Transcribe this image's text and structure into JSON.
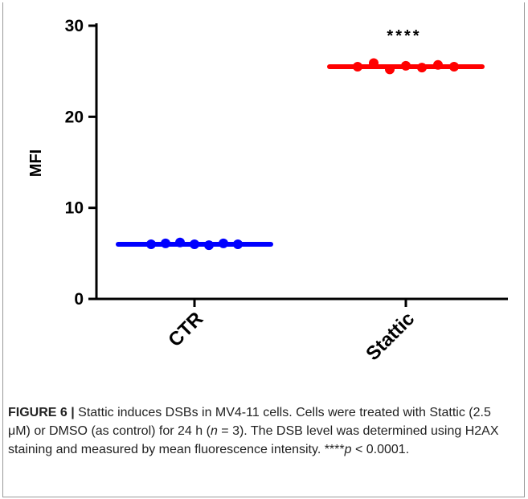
{
  "chart_data": {
    "type": "scatter",
    "categories": [
      "CTR",
      "Stattic"
    ],
    "series": [
      {
        "values": [
          6.0,
          6.1,
          6.2,
          6.0,
          5.9,
          6.1,
          6.0
        ],
        "color": "#0000ff"
      },
      {
        "values": [
          25.5,
          25.9,
          25.2,
          25.6,
          25.4,
          25.7,
          25.5
        ],
        "color": "#ff0000"
      }
    ],
    "means": [
      6.0,
      25.5
    ],
    "xlabel": "",
    "ylabel": "MFI",
    "ylim": [
      0,
      30
    ],
    "yticks": [
      "0",
      "10",
      "20",
      "30"
    ],
    "significance": "****",
    "grid": false
  },
  "caption": {
    "label": "FIGURE 6 |",
    "part1": " Stattic induces DSBs in MV4-11 cells. Cells were treated with Stattic (2.5 μM) or DMSO (as control) for 24 h (",
    "n_symbol": "n",
    "part2": " = 3). The DSB level was determined using H2AX staining and measured by mean fluorescence intensity. ****",
    "p_symbol": "p",
    "part3": " < 0.0001."
  }
}
